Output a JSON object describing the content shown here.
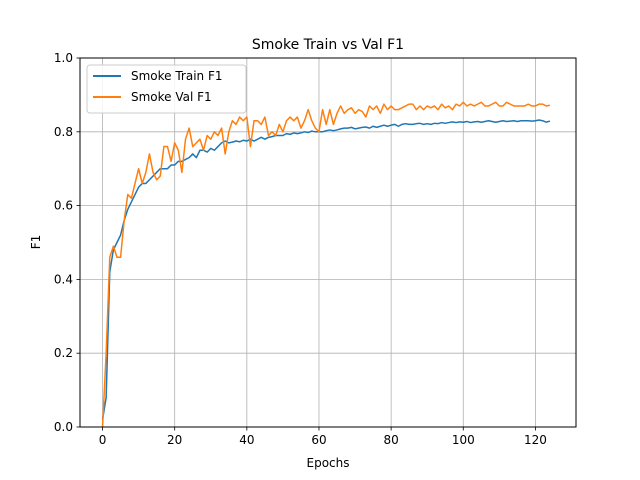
{
  "chart_data": {
    "type": "line",
    "title": "Smoke Train vs Val F1",
    "xlabel": "Epochs",
    "ylabel": "F1",
    "xlim": [
      -6.25,
      131.25
    ],
    "ylim": [
      0.0,
      1.0
    ],
    "xticks": [
      0,
      20,
      40,
      60,
      80,
      100,
      120
    ],
    "yticks": [
      0.0,
      0.2,
      0.4,
      0.6,
      0.8,
      1.0
    ],
    "xtick_labels": [
      "0",
      "20",
      "40",
      "60",
      "80",
      "100",
      "120"
    ],
    "ytick_labels": [
      "0.0",
      "0.2",
      "0.4",
      "0.6",
      "0.8",
      "1.0"
    ],
    "grid": true,
    "legend_position": "top-left",
    "series": [
      {
        "name": "Smoke Train F1",
        "color": "#1f77b4",
        "x": [
          0,
          1,
          2,
          3,
          4,
          5,
          6,
          7,
          8,
          9,
          10,
          11,
          12,
          13,
          14,
          15,
          16,
          17,
          18,
          19,
          20,
          21,
          22,
          23,
          24,
          25,
          26,
          27,
          28,
          29,
          30,
          31,
          32,
          33,
          34,
          35,
          36,
          37,
          38,
          39,
          40,
          41,
          42,
          43,
          44,
          45,
          46,
          47,
          48,
          49,
          50,
          51,
          52,
          53,
          54,
          55,
          56,
          57,
          58,
          59,
          60,
          61,
          62,
          63,
          64,
          65,
          66,
          67,
          68,
          69,
          70,
          71,
          72,
          73,
          74,
          75,
          76,
          77,
          78,
          79,
          80,
          81,
          82,
          83,
          84,
          85,
          86,
          87,
          88,
          89,
          90,
          91,
          92,
          93,
          94,
          95,
          96,
          97,
          98,
          99,
          100,
          101,
          102,
          103,
          104,
          105,
          106,
          107,
          108,
          109,
          110,
          111,
          112,
          113,
          114,
          115,
          116,
          117,
          118,
          119,
          120,
          121,
          122,
          123,
          124
        ],
        "values": [
          0.02,
          0.08,
          0.42,
          0.48,
          0.5,
          0.52,
          0.56,
          0.59,
          0.61,
          0.63,
          0.65,
          0.66,
          0.66,
          0.67,
          0.68,
          0.69,
          0.7,
          0.7,
          0.7,
          0.71,
          0.71,
          0.72,
          0.72,
          0.725,
          0.73,
          0.74,
          0.73,
          0.75,
          0.75,
          0.745,
          0.755,
          0.75,
          0.76,
          0.77,
          0.775,
          0.77,
          0.772,
          0.775,
          0.773,
          0.777,
          0.775,
          0.78,
          0.775,
          0.78,
          0.785,
          0.78,
          0.785,
          0.787,
          0.79,
          0.79,
          0.79,
          0.795,
          0.793,
          0.797,
          0.795,
          0.797,
          0.8,
          0.798,
          0.802,
          0.8,
          0.8,
          0.8,
          0.803,
          0.805,
          0.803,
          0.805,
          0.808,
          0.81,
          0.81,
          0.812,
          0.808,
          0.81,
          0.812,
          0.813,
          0.81,
          0.815,
          0.812,
          0.815,
          0.818,
          0.815,
          0.818,
          0.82,
          0.815,
          0.82,
          0.822,
          0.82,
          0.82,
          0.822,
          0.823,
          0.82,
          0.822,
          0.82,
          0.823,
          0.822,
          0.825,
          0.823,
          0.825,
          0.827,
          0.825,
          0.827,
          0.826,
          0.828,
          0.825,
          0.827,
          0.828,
          0.826,
          0.828,
          0.83,
          0.828,
          0.826,
          0.828,
          0.83,
          0.828,
          0.829,
          0.83,
          0.828,
          0.83,
          0.83,
          0.83,
          0.829,
          0.83,
          0.832,
          0.83,
          0.826,
          0.829
        ]
      },
      {
        "name": "Smoke Val F1",
        "color": "#ff7f0e",
        "x": [
          0,
          1,
          2,
          3,
          4,
          5,
          6,
          7,
          8,
          9,
          10,
          11,
          12,
          13,
          14,
          15,
          16,
          17,
          18,
          19,
          20,
          21,
          22,
          23,
          24,
          25,
          26,
          27,
          28,
          29,
          30,
          31,
          32,
          33,
          34,
          35,
          36,
          37,
          38,
          39,
          40,
          41,
          42,
          43,
          44,
          45,
          46,
          47,
          48,
          49,
          50,
          51,
          52,
          53,
          54,
          55,
          56,
          57,
          58,
          59,
          60,
          61,
          62,
          63,
          64,
          65,
          66,
          67,
          68,
          69,
          70,
          71,
          72,
          73,
          74,
          75,
          76,
          77,
          78,
          79,
          80,
          81,
          82,
          83,
          84,
          85,
          86,
          87,
          88,
          89,
          90,
          91,
          92,
          93,
          94,
          95,
          96,
          97,
          98,
          99,
          100,
          101,
          102,
          103,
          104,
          105,
          106,
          107,
          108,
          109,
          110,
          111,
          112,
          113,
          114,
          115,
          116,
          117,
          118,
          119,
          120,
          121,
          122,
          123,
          124
        ],
        "values": [
          0.0,
          0.2,
          0.46,
          0.49,
          0.46,
          0.46,
          0.56,
          0.63,
          0.62,
          0.66,
          0.7,
          0.66,
          0.69,
          0.74,
          0.69,
          0.67,
          0.68,
          0.76,
          0.76,
          0.72,
          0.77,
          0.75,
          0.69,
          0.78,
          0.81,
          0.76,
          0.77,
          0.78,
          0.75,
          0.79,
          0.78,
          0.8,
          0.79,
          0.81,
          0.74,
          0.8,
          0.83,
          0.82,
          0.84,
          0.83,
          0.84,
          0.76,
          0.83,
          0.83,
          0.82,
          0.84,
          0.79,
          0.8,
          0.79,
          0.82,
          0.8,
          0.83,
          0.84,
          0.83,
          0.84,
          0.81,
          0.83,
          0.86,
          0.83,
          0.81,
          0.8,
          0.86,
          0.82,
          0.86,
          0.82,
          0.85,
          0.87,
          0.85,
          0.86,
          0.865,
          0.85,
          0.86,
          0.855,
          0.84,
          0.87,
          0.86,
          0.87,
          0.85,
          0.875,
          0.86,
          0.87,
          0.86,
          0.86,
          0.865,
          0.87,
          0.875,
          0.875,
          0.86,
          0.87,
          0.86,
          0.87,
          0.865,
          0.87,
          0.86,
          0.875,
          0.865,
          0.87,
          0.86,
          0.875,
          0.87,
          0.88,
          0.87,
          0.875,
          0.87,
          0.875,
          0.88,
          0.87,
          0.87,
          0.875,
          0.88,
          0.87,
          0.87,
          0.88,
          0.875,
          0.87,
          0.87,
          0.87,
          0.87,
          0.875,
          0.87,
          0.87,
          0.875,
          0.875,
          0.87,
          0.872
        ]
      }
    ]
  }
}
